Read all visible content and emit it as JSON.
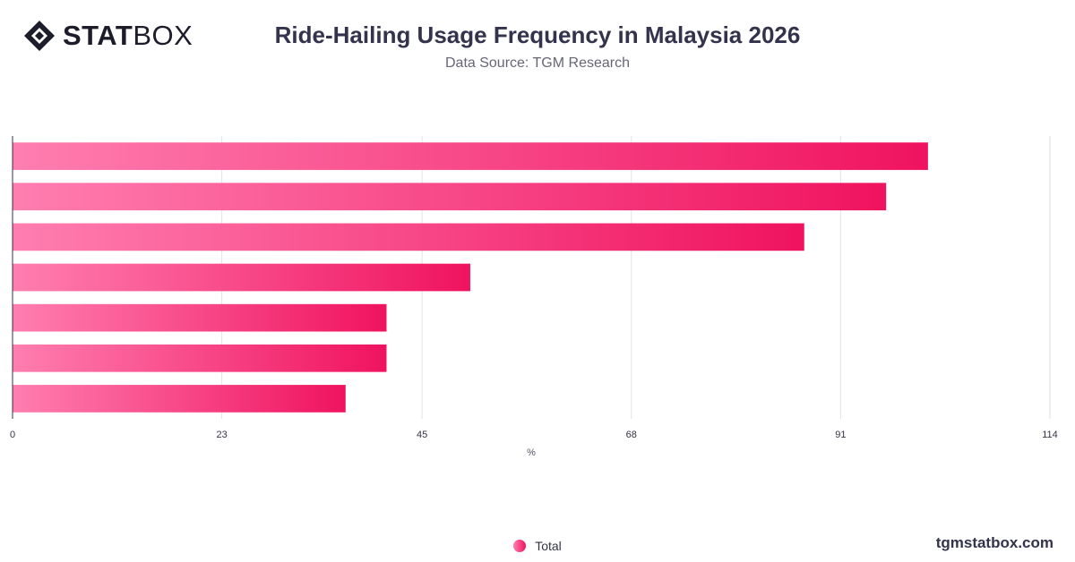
{
  "brand": {
    "logo_bold": "STAT",
    "logo_light": "BOX",
    "site_url": "tgmstatbox.com",
    "logo_icon": "diamond-grid-icon"
  },
  "header": {
    "title": "Ride-Hailing Usage Frequency in Malaysia 2026",
    "subtitle": "Data Source: TGM Research"
  },
  "colors": {
    "bar_start": "#ff7eb0",
    "bar_end": "#f0135f",
    "grid": "#e2e2e8",
    "axis": "#333344"
  },
  "chart_data": {
    "type": "bar",
    "orientation": "horizontal",
    "series": [
      {
        "name": "Total",
        "values": [
          100.6,
          96,
          87,
          50.3,
          41.1,
          41.1,
          36.6
        ]
      }
    ],
    "xlabel": "%",
    "ylabel": "",
    "xlim": [
      0,
      114
    ],
    "x_ticks": [
      "0",
      "23",
      "45",
      "68",
      "91",
      "114"
    ],
    "grid": true,
    "legend": "bottom-center"
  }
}
